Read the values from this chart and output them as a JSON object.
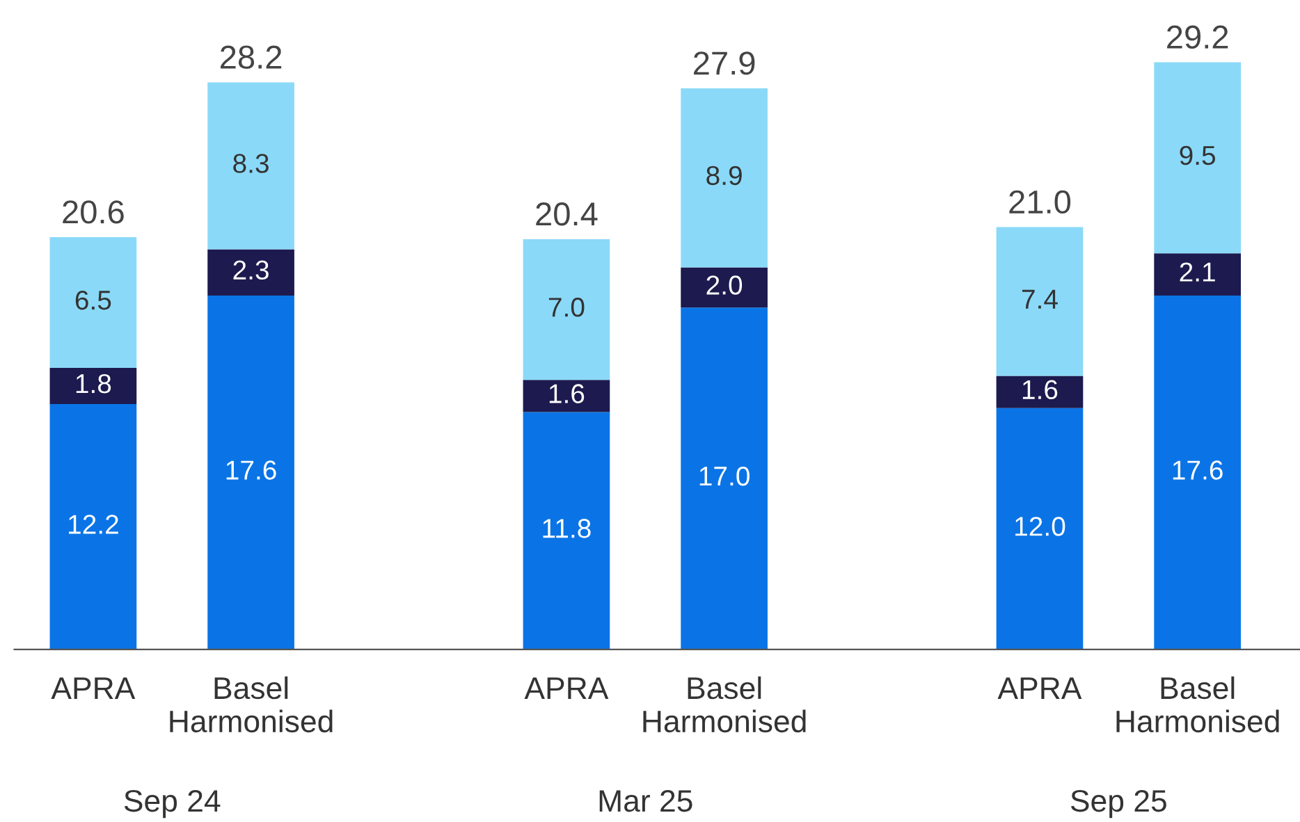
{
  "chart_data": {
    "type": "bar",
    "stacked": true,
    "legend": false,
    "grid": false,
    "categories": [
      "APRA",
      "Basel Harmonised",
      null,
      "APRA",
      "Basel Harmonised",
      null,
      "APRA",
      "Basel Harmonised"
    ],
    "series": [
      {
        "color": "#0a74e6",
        "values": [
          12.2,
          17.6,
          null,
          11.8,
          17.0,
          null,
          12.0,
          17.6
        ],
        "value_labels": [
          "12.2",
          "17.6",
          null,
          "11.8",
          "17.0",
          null,
          "12.0",
          "17.6"
        ]
      },
      {
        "color": "#1c1a4e",
        "values": [
          1.8,
          2.3,
          null,
          1.6,
          2.0,
          null,
          1.6,
          2.1
        ],
        "value_labels": [
          "1.8",
          "2.3",
          null,
          "1.6",
          "2.0",
          null,
          "1.6",
          "2.1"
        ]
      },
      {
        "color": "#8bd9f8",
        "values": [
          6.5,
          8.3,
          null,
          7.0,
          8.9,
          null,
          7.4,
          9.5
        ],
        "value_labels": [
          "6.5",
          "8.3",
          null,
          "7.0",
          "8.9",
          null,
          "7.4",
          "9.5"
        ]
      }
    ],
    "totals": [
      "20.6",
      "28.2",
      null,
      "20.4",
      "27.9",
      null,
      "21.0",
      "29.2"
    ],
    "annotations": [
      "Sep 24",
      "Mar 25",
      "Sep 25"
    ]
  }
}
